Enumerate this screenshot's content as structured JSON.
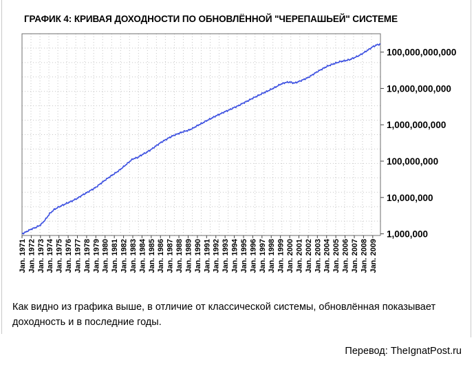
{
  "title": "ГРАФИК 4: КРИВАЯ ДОХОДНОСТИ ПО ОБНОВЛЁННОЙ \"ЧЕРЕПАШЬЕЙ\" СИСТЕМЕ",
  "caption": "Как видно из графика выше, в отличие от классической системы, обновлённая показывает доходность и в последние годы.",
  "credit": "Перевод: TheIgnatPost.ru",
  "colors": {
    "line": "#3a4ee0",
    "plot_border": "#6e6e6e",
    "grid": "#c4c4c4"
  },
  "chart_data": {
    "type": "line",
    "title": "ГРАФИК 4: КРИВАЯ ДОХОДНОСТИ ПО ОБНОВЛЁННОЙ \"ЧЕРЕПАШЬЕЙ\" СИСТЕМЕ",
    "xlabel": "",
    "ylabel": "",
    "y_scale": "log",
    "ylim": [
      900000,
      320000000000
    ],
    "xlim": [
      "1971-01",
      "2009-11"
    ],
    "grid": true,
    "legend": "none",
    "y_ticks": [
      1000000,
      10000000,
      100000000,
      1000000000,
      10000000000,
      100000000000
    ],
    "y_tick_labels": [
      "1,000,000",
      "10,000,000",
      "100,000,000",
      "1,000,000,000",
      "10,000,000,000",
      "100,000,000,000"
    ],
    "x_tick_labels": [
      "Jan. 1971",
      "Jan. 1972",
      "Jan. 1973",
      "Jan. 1974",
      "Jan. 1975",
      "Jan. 1976",
      "Jan. 1977",
      "Jan. 1978",
      "Jan. 1979",
      "Jan. 1980",
      "Jan. 1981",
      "Jan. 1982",
      "Jan. 1983",
      "Jan. 1984",
      "Jan. 1985",
      "Jan. 1986",
      "Jan. 1987",
      "Jan. 1988",
      "Jan. 1989",
      "Jan. 1990",
      "Jan. 1991",
      "Jan. 1992",
      "Jan. 1993",
      "Jan. 1994",
      "Jan. 1995",
      "Jan. 1996",
      "Jan. 1997",
      "Jan. 1998",
      "Jan. 1999",
      "Jan. 2000",
      "Jan. 2001",
      "Jan. 2002",
      "Jan. 2003",
      "Jan. 2004",
      "Jan. 2005",
      "Jan. 2006",
      "Jan. 2007",
      "Jan. 2008",
      "Jan. 2009"
    ],
    "series": [
      {
        "name": "",
        "x": [
          "1971-01",
          "1971-07",
          "1972-01",
          "1972-07",
          "1973-01",
          "1973-07",
          "1974-01",
          "1974-07",
          "1975-01",
          "1975-07",
          "1976-01",
          "1976-07",
          "1977-01",
          "1977-07",
          "1978-01",
          "1978-07",
          "1979-01",
          "1979-07",
          "1980-01",
          "1980-07",
          "1981-01",
          "1981-07",
          "1982-01",
          "1982-07",
          "1983-01",
          "1983-07",
          "1984-01",
          "1984-07",
          "1985-01",
          "1985-07",
          "1986-01",
          "1986-07",
          "1987-01",
          "1987-07",
          "1988-01",
          "1988-07",
          "1989-01",
          "1989-07",
          "1990-01",
          "1990-07",
          "1991-01",
          "1991-07",
          "1992-01",
          "1992-07",
          "1993-01",
          "1993-07",
          "1994-01",
          "1994-07",
          "1995-01",
          "1995-07",
          "1996-01",
          "1996-07",
          "1997-01",
          "1997-07",
          "1998-01",
          "1998-07",
          "1999-01",
          "1999-07",
          "2000-01",
          "2000-07",
          "2001-01",
          "2001-07",
          "2002-01",
          "2002-07",
          "2003-01",
          "2003-07",
          "2004-01",
          "2004-07",
          "2005-01",
          "2005-07",
          "2006-01",
          "2006-07",
          "2007-01",
          "2007-07",
          "2008-01",
          "2008-07",
          "2009-01",
          "2009-07",
          "2009-11"
        ],
        "y": [
          1000000,
          1150000,
          1350000,
          1500000,
          1750000,
          2400000,
          3600000,
          4700000,
          5500000,
          6300000,
          7200000,
          8200000,
          9500000,
          11500000,
          13500000,
          16000000,
          19000000,
          24000000,
          30000000,
          37000000,
          45000000,
          55000000,
          70000000,
          90000000,
          115000000,
          125000000,
          150000000,
          175000000,
          210000000,
          260000000,
          320000000,
          380000000,
          450000000,
          520000000,
          580000000,
          650000000,
          700000000,
          800000000,
          950000000,
          1100000000,
          1300000000,
          1500000000,
          1750000000,
          2000000000,
          2300000000,
          2600000000,
          3000000000,
          3400000000,
          4000000000,
          4600000000,
          5400000000,
          6200000000,
          7200000000,
          8200000000,
          9500000000,
          11000000000,
          13000000000,
          14500000000,
          15000000000,
          14000000000,
          15500000000,
          17500000000,
          20000000000,
          24000000000,
          29000000000,
          34000000000,
          40000000000,
          45000000000,
          50000000000,
          55000000000,
          58000000000,
          62000000000,
          70000000000,
          80000000000,
          95000000000,
          115000000000,
          140000000000,
          160000000000,
          165000000000
        ]
      }
    ]
  }
}
